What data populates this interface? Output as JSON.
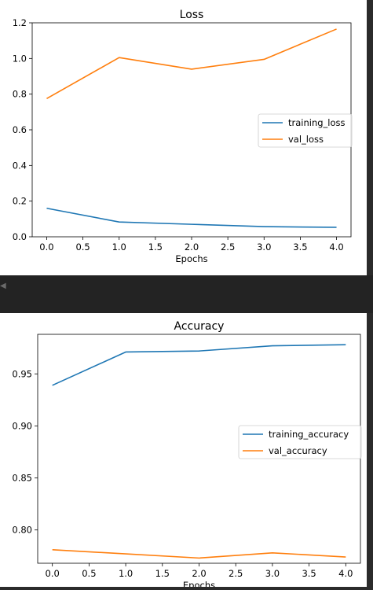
{
  "chart_data": [
    {
      "type": "line",
      "title": "Loss",
      "xlabel": "Epochs",
      "ylabel": "",
      "x": [
        0,
        1,
        2,
        3,
        4
      ],
      "xlim": [
        -0.2,
        4.2
      ],
      "ylim": [
        0,
        1.2
      ],
      "xticks": [
        0.0,
        0.5,
        1.0,
        1.5,
        2.0,
        2.5,
        3.0,
        3.5,
        4.0
      ],
      "xtick_labels": [
        "0.0",
        "0.5",
        "1.0",
        "1.5",
        "2.0",
        "2.5",
        "3.0",
        "3.5",
        "4.0"
      ],
      "yticks": [
        0.0,
        0.2,
        0.4,
        0.6,
        0.8,
        1.0,
        1.2
      ],
      "ytick_labels": [
        "0.0",
        "0.2",
        "0.4",
        "0.6",
        "0.8",
        "1.0",
        "1.2"
      ],
      "grid": false,
      "legend_position": "center-right",
      "series": [
        {
          "name": "training_loss",
          "color": "#1f77b4",
          "values": [
            0.16,
            0.083,
            0.07,
            0.057,
            0.053
          ]
        },
        {
          "name": "val_loss",
          "color": "#ff7f0e",
          "values": [
            0.775,
            1.005,
            0.94,
            0.995,
            1.165
          ]
        }
      ]
    },
    {
      "type": "line",
      "title": "Accuracy",
      "xlabel": "Epochs",
      "ylabel": "",
      "x": [
        0,
        1,
        2,
        3,
        4
      ],
      "xlim": [
        -0.2,
        4.2
      ],
      "ylim": [
        0.768,
        0.988
      ],
      "xticks": [
        0.0,
        0.5,
        1.0,
        1.5,
        2.0,
        2.5,
        3.0,
        3.5,
        4.0
      ],
      "xtick_labels": [
        "0.0",
        "0.5",
        "1.0",
        "1.5",
        "2.0",
        "2.5",
        "3.0",
        "3.5",
        "4.0"
      ],
      "yticks": [
        0.8,
        0.85,
        0.9,
        0.95
      ],
      "ytick_labels": [
        "0.80",
        "0.85",
        "0.90",
        "0.95"
      ],
      "grid": false,
      "legend_position": "center-right",
      "series": [
        {
          "name": "training_accuracy",
          "color": "#1f77b4",
          "values": [
            0.939,
            0.971,
            0.972,
            0.977,
            0.978
          ]
        },
        {
          "name": "val_accuracy",
          "color": "#ff7f0e",
          "values": [
            0.781,
            0.777,
            0.773,
            0.778,
            0.774
          ]
        }
      ]
    }
  ]
}
